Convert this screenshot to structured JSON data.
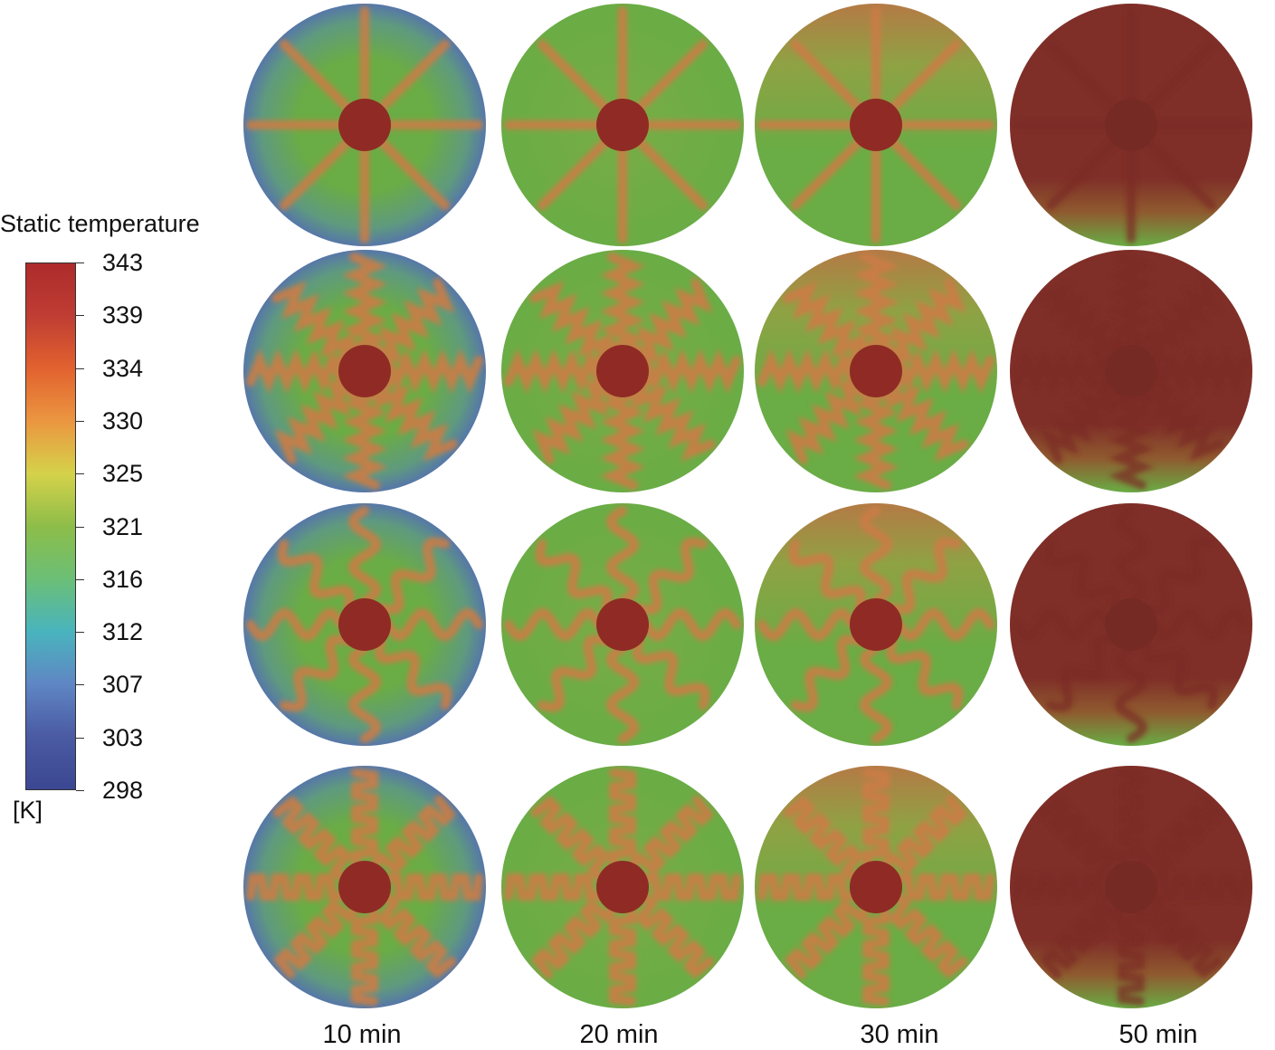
{
  "legend": {
    "title": "Static temperature",
    "unit": "[K]",
    "ticks": [
      "343",
      "339",
      "334",
      "330",
      "325",
      "321",
      "316",
      "312",
      "307",
      "303",
      "298"
    ],
    "gradient": [
      "#ad2b2b",
      "#bf3d33",
      "#e2622f",
      "#eb9640",
      "#d5d24a",
      "#8dbd49",
      "#6bbf76",
      "#49b4bd",
      "#5f86c4",
      "#4a5aa3",
      "#3b4792"
    ]
  },
  "columns": [
    "10 min",
    "20 min",
    "30 min",
    "50 min"
  ],
  "rows": [
    {
      "fin": "straight"
    },
    {
      "fin": "zigzag"
    },
    {
      "fin": "wavy"
    },
    {
      "fin": "stepped"
    }
  ],
  "colors": {
    "hot": "#7f2f28",
    "fin": "#cc7b45",
    "green": "#6aac45",
    "blue": "#5677a8",
    "green_dark": "#5e9a3f"
  }
}
